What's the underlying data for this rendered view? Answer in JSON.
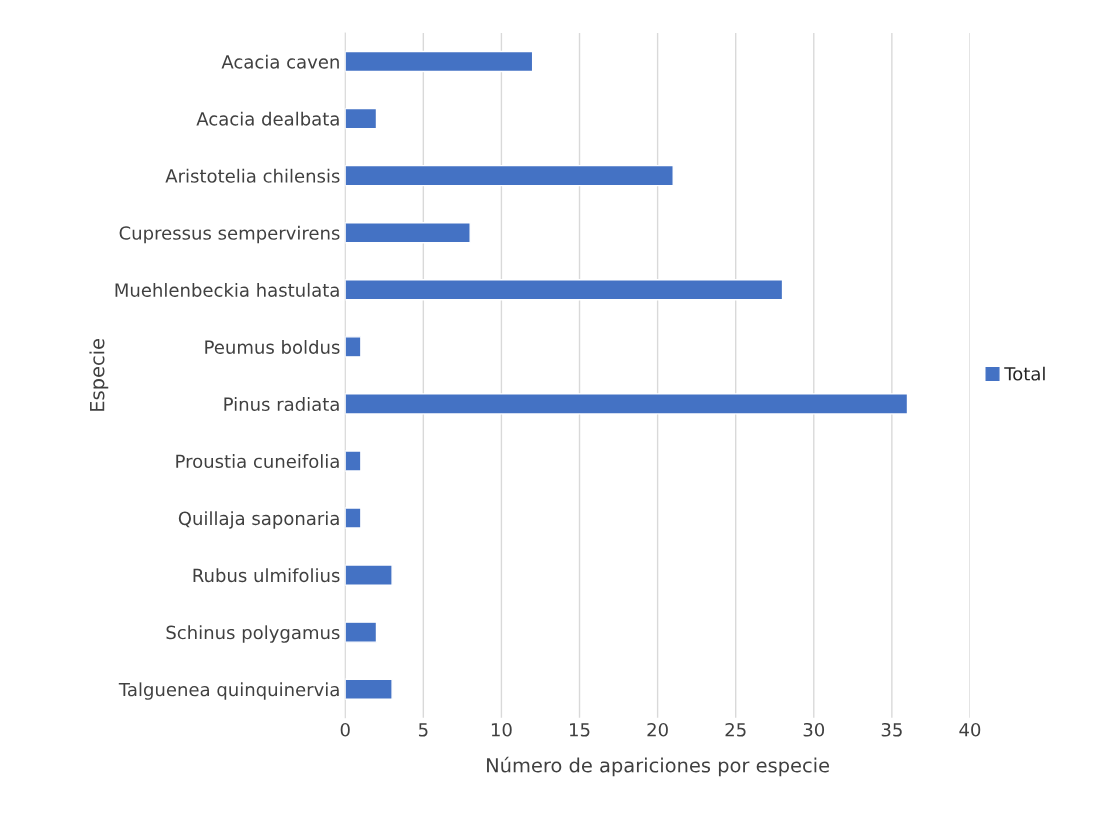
{
  "chart_data": {
    "type": "bar",
    "orientation": "horizontal",
    "xlabel": "Número de apariciones por especie",
    "ylabel": "Especie",
    "categories": [
      "Acacia caven",
      "Acacia dealbata",
      "Aristotelia chilensis",
      "Cupressus sempervirens",
      "Muehlenbeckia hastulata",
      "Peumus boldus",
      "Pinus radiata",
      "Proustia cuneifolia",
      "Quillaja saponaria",
      "Rubus ulmifolius",
      "Schinus polygamus",
      "Talguenea quinquinervia"
    ],
    "series": [
      {
        "name": "Total",
        "color": "#4472c4",
        "values": [
          12,
          2,
          21,
          8,
          28,
          1,
          36,
          1,
          1,
          3,
          2,
          3
        ]
      }
    ],
    "xlim": [
      0,
      40
    ],
    "xticks": [
      0,
      5,
      10,
      15,
      20,
      25,
      30,
      35,
      40
    ],
    "grid": "x",
    "legend": "right"
  }
}
